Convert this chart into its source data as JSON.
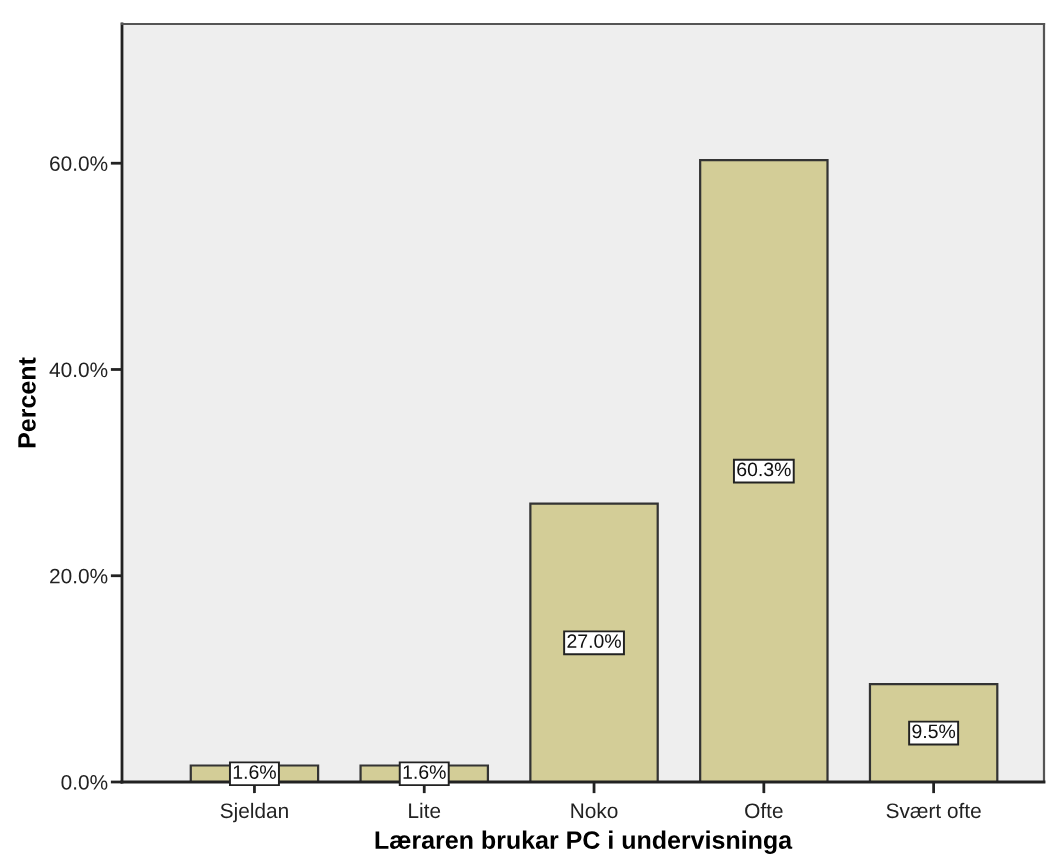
{
  "chart_data": {
    "type": "bar",
    "xlabel": "Læraren brukar PC i undervisninga",
    "ylabel": "Percent",
    "categories": [
      "Sjeldan",
      "Lite",
      "Noko",
      "Ofte",
      "Svært ofte"
    ],
    "values": [
      1.6,
      1.6,
      27.0,
      60.3,
      9.5
    ],
    "color": "#d3cd97",
    "value_labels": [
      "1.6%",
      "1.6%",
      "27.0%",
      "60.3%",
      "9.5%"
    ],
    "ylim": [
      0,
      73.5
    ],
    "yticks": [
      {
        "value": 0,
        "label": "0.0%"
      },
      {
        "value": 20,
        "label": "20.0%"
      },
      {
        "value": 40,
        "label": "40.0%"
      },
      {
        "value": 60,
        "label": "60.0%"
      }
    ],
    "grid": false
  }
}
